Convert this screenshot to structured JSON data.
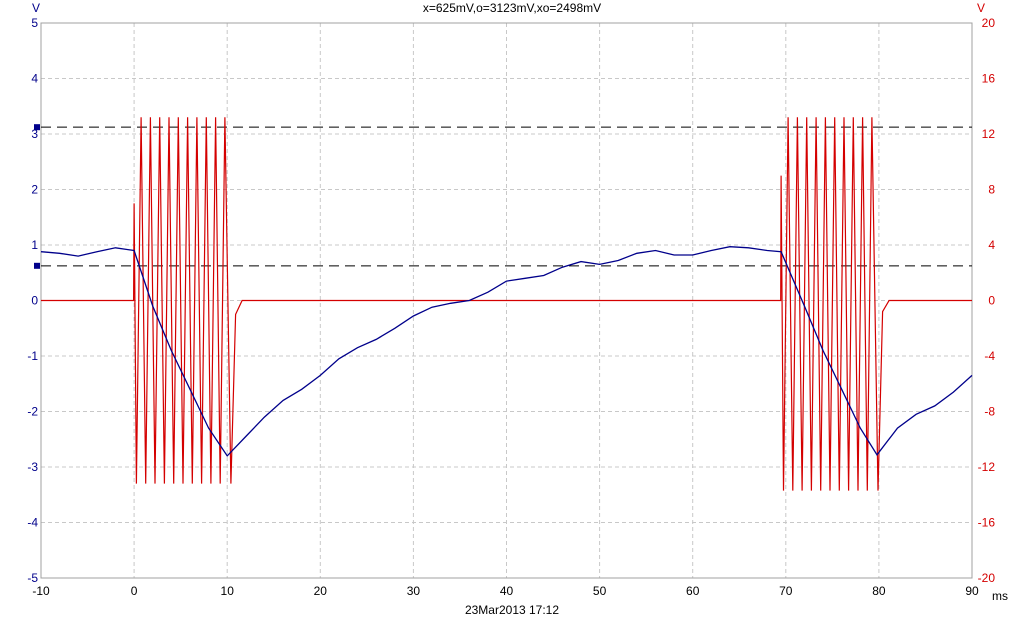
{
  "chart_data": {
    "type": "line",
    "title": "x=625mV,o=3123mV,xo=2498mV",
    "timestamp": "23Mar2013  17:12",
    "xlabel": "ms",
    "ylabel_left": "V",
    "ylabel_right": "V",
    "xlim": [
      -10,
      90
    ],
    "ylim_left": [
      -5,
      5
    ],
    "ylim_right": [
      -20,
      20
    ],
    "x_ticks": [
      "-10",
      "0",
      "10",
      "20",
      "30",
      "40",
      "50",
      "60",
      "70",
      "80",
      "90"
    ],
    "y_left_ticks": [
      "5",
      "4",
      "3",
      "2",
      "1",
      "0",
      "-1",
      "-2",
      "-3",
      "-4",
      "-5"
    ],
    "y_right_ticks": [
      "20",
      "16",
      "12",
      "8",
      "4",
      "0",
      "-4",
      "-8",
      "-12",
      "-16",
      "-20"
    ],
    "grid": true,
    "cursors": [
      {
        "name": "x",
        "value": 0.625,
        "axis": "left"
      },
      {
        "name": "o",
        "value": 3.123,
        "axis": "left"
      }
    ],
    "colors": {
      "left_series": "#00008b",
      "right_series": "#d40000",
      "grid": "#c8c8c8",
      "cursor": "#000000"
    },
    "series": [
      {
        "axis": "left",
        "color": "#00008b",
        "x": [
          -10,
          -8,
          -6,
          -4,
          -2,
          0,
          2,
          4,
          6,
          8,
          10,
          12,
          14,
          16,
          18,
          20,
          22,
          24,
          26,
          28,
          30,
          32,
          34,
          36,
          38,
          40,
          42,
          44,
          46,
          48,
          50,
          52,
          54,
          56,
          58,
          60,
          62,
          64,
          66,
          68,
          69.5,
          72,
          74,
          76,
          78,
          79.8,
          82,
          84,
          86,
          88,
          90
        ],
        "y": [
          0.88,
          0.85,
          0.8,
          0.88,
          0.95,
          0.9,
          -0.1,
          -0.9,
          -1.6,
          -2.3,
          -2.8,
          -2.45,
          -2.1,
          -1.8,
          -1.6,
          -1.35,
          -1.05,
          -0.85,
          -0.7,
          -0.5,
          -0.28,
          -0.12,
          -0.05,
          0.0,
          0.15,
          0.35,
          0.4,
          0.45,
          0.6,
          0.7,
          0.65,
          0.72,
          0.85,
          0.9,
          0.82,
          0.82,
          0.9,
          0.97,
          0.95,
          0.9,
          0.88,
          -0.1,
          -0.9,
          -1.6,
          -2.3,
          -2.78,
          -2.3,
          -2.05,
          -1.9,
          -1.65,
          -1.35
        ]
      },
      {
        "axis": "right",
        "color": "#d40000",
        "bursts": [
          {
            "start": 0,
            "end": 10,
            "cycles": 10,
            "high": 13.2,
            "low": -13.2,
            "first_peak": 7.0,
            "ringdown": -1.0
          },
          {
            "start": 69.5,
            "end": 79.5,
            "cycles": 10,
            "high": 13.2,
            "low": -13.7,
            "first_peak": 9.0,
            "ringdown": -0.8
          }
        ],
        "baseline": 0
      }
    ]
  }
}
